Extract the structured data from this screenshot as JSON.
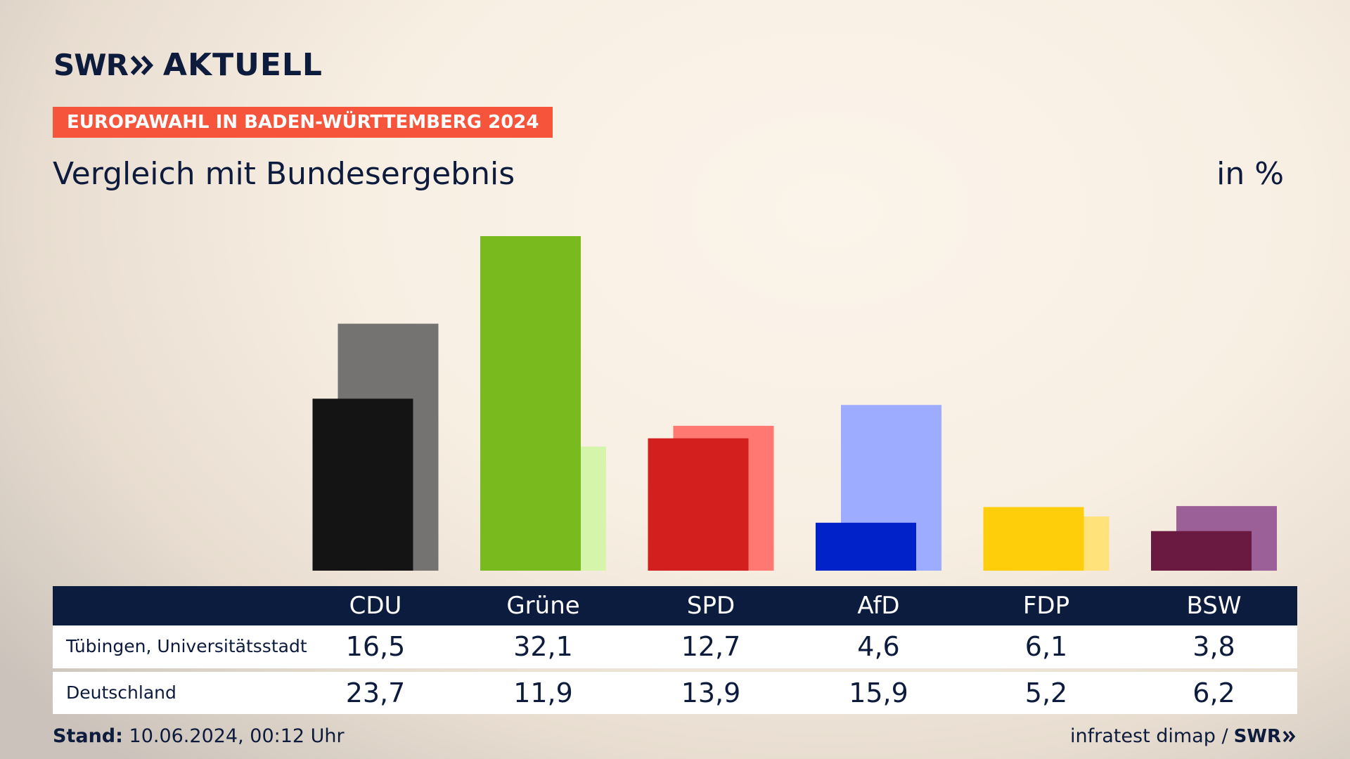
{
  "header": {
    "logo_brand": "SWR",
    "logo_product": "AKTUELL",
    "banner": "EUROPAWAHL IN BADEN-WÜRTTEMBERG 2024",
    "subtitle": "Vergleich mit Bundesergebnis",
    "unit": "in %"
  },
  "footer": {
    "stand_label": "Stand:",
    "stand_value": "10.06.2024, 00:12 Uhr",
    "source": "infratest dimap /",
    "source_brand": "SWR"
  },
  "colors": {
    "banner": "#f6553c",
    "navy": "#0c1c3e"
  },
  "chart_data": {
    "type": "bar",
    "categories": [
      "CDU",
      "Grüne",
      "SPD",
      "AfD",
      "FDP",
      "BSW"
    ],
    "series": [
      {
        "name": "Tübingen, Universitätsstadt",
        "values": [
          16.5,
          32.1,
          12.7,
          4.6,
          6.1,
          3.8
        ],
        "colors": [
          "#141414",
          "#79bb1e",
          "#d41f1f",
          "#0022c8",
          "#ffce0b",
          "#6a1a40"
        ]
      },
      {
        "name": "Deutschland",
        "values": [
          23.7,
          11.9,
          13.9,
          15.9,
          5.2,
          6.2
        ],
        "colors": [
          "#757371",
          "#d4f5aa",
          "#ff7872",
          "#9eacff",
          "#ffe27a",
          "#9b6098"
        ]
      }
    ],
    "value_labels": [
      [
        "16,5",
        "32,1",
        "12,7",
        "4,6",
        "6,1",
        "3,8"
      ],
      [
        "23,7",
        "11,9",
        "13,9",
        "15,9",
        "5,2",
        "6,2"
      ]
    ],
    "ylim": [
      0,
      32.1
    ],
    "legend": "table-below"
  }
}
